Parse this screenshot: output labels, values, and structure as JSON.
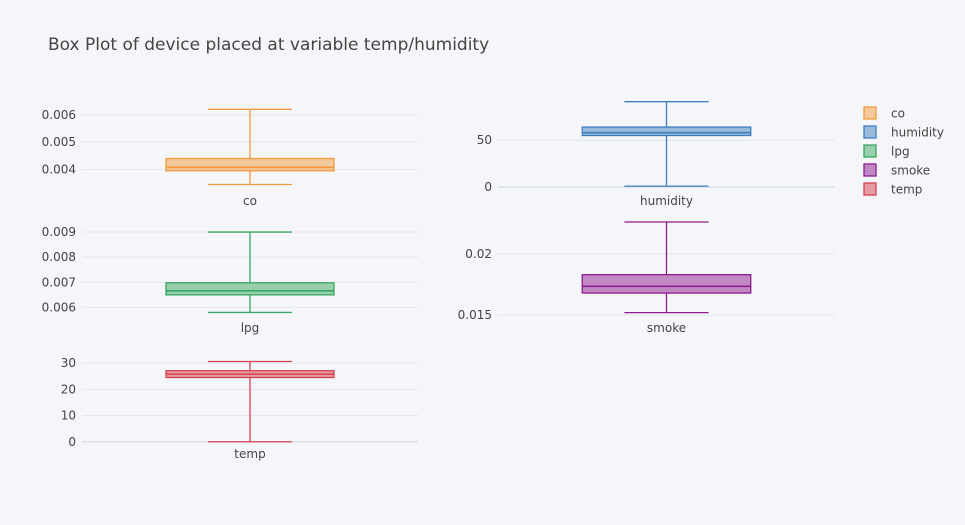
{
  "chart_title": "Box Plot of device placed at variable temp/humidity",
  "colors": {
    "co": "#f39a3c",
    "humidity": "#3f7fbf",
    "lpg": "#3aa660",
    "smoke": "#8e1b8e",
    "temp": "#d6404e"
  },
  "chart_data": {
    "type": "box",
    "title": "Box Plot of device placed at variable temp/humidity",
    "legend": {
      "placement": "top-right",
      "entries": [
        "co",
        "humidity",
        "lpg",
        "smoke",
        "temp"
      ]
    },
    "grid": true,
    "subplots": [
      {
        "name": "co",
        "category": "co",
        "ylim": [
          0.00325,
          0.00665
        ],
        "yticks": [
          0.004,
          0.005,
          0.006
        ],
        "ytick_labels": [
          "0.004",
          "0.005",
          "0.006"
        ],
        "stats": {
          "min": 0.00345,
          "q1": 0.00395,
          "median": 0.00408,
          "q3": 0.0044,
          "max": 0.0062
        }
      },
      {
        "name": "humidity",
        "category": "humidity",
        "ylim": [
          -3,
          96
        ],
        "yticks": [
          0,
          50
        ],
        "ytick_labels": [
          "0",
          "50"
        ],
        "stats": {
          "min": 1.1,
          "q1": 55,
          "median": 58,
          "q3": 64,
          "max": 91
        }
      },
      {
        "name": "lpg",
        "category": "lpg",
        "ylim": [
          0.0055,
          0.0094
        ],
        "yticks": [
          0.006,
          0.007,
          0.008,
          0.009
        ],
        "ytick_labels": [
          "0.006",
          "0.007",
          "0.008",
          "0.009"
        ],
        "stats": {
          "min": 0.0058,
          "q1": 0.0065,
          "median": 0.00666,
          "q3": 0.00698,
          "max": 0.009
        }
      },
      {
        "name": "smoke",
        "category": "smoke",
        "ylim": [
          0.0146,
          0.0226
        ],
        "yticks": [
          0.015,
          0.02
        ],
        "ytick_labels": [
          "0.015",
          "0.02"
        ],
        "stats": {
          "min": 0.0152,
          "q1": 0.0168,
          "median": 0.01735,
          "q3": 0.0183,
          "max": 0.0226
        }
      },
      {
        "name": "temp",
        "category": "temp",
        "ylim": [
          -2,
          35
        ],
        "yticks": [
          0,
          10,
          20,
          30
        ],
        "ytick_labels": [
          "0",
          "10",
          "20",
          "30"
        ],
        "stats": {
          "min": 0,
          "q1": 24.5,
          "median": 25.8,
          "q3": 27.1,
          "max": 30.6
        }
      }
    ]
  }
}
